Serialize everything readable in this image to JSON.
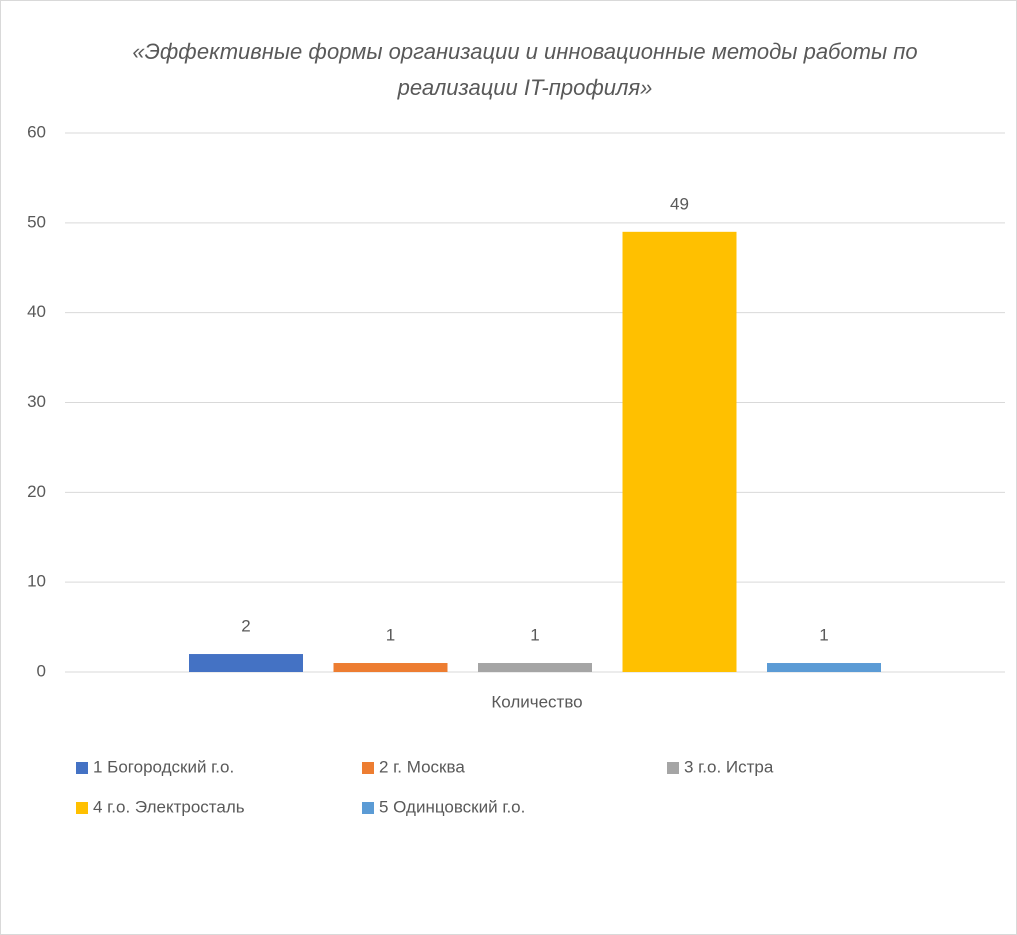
{
  "chart_data": {
    "type": "bar",
    "title": "«Эффективные формы организации и инновационные методы работы по реализации IT-профиля»",
    "categories": [
      "Количество"
    ],
    "series": [
      {
        "name": "1 Богородский г.о.",
        "color": "#4472c4",
        "values": [
          2
        ]
      },
      {
        "name": "2 г. Москва",
        "color": "#ed7d31",
        "values": [
          1
        ]
      },
      {
        "name": "3 г.о. Истра",
        "color": "#a5a5a5",
        "values": [
          1
        ]
      },
      {
        "name": "4 г.о. Электросталь",
        "color": "#ffc000",
        "values": [
          49
        ]
      },
      {
        "name": "5 Одинцовский г.о.",
        "color": "#5b9bd5",
        "values": [
          1
        ]
      }
    ],
    "ylim": [
      0,
      60
    ],
    "yticks": [
      0,
      10,
      20,
      30,
      40,
      50,
      60
    ],
    "grid": true,
    "legend": "bottom"
  }
}
